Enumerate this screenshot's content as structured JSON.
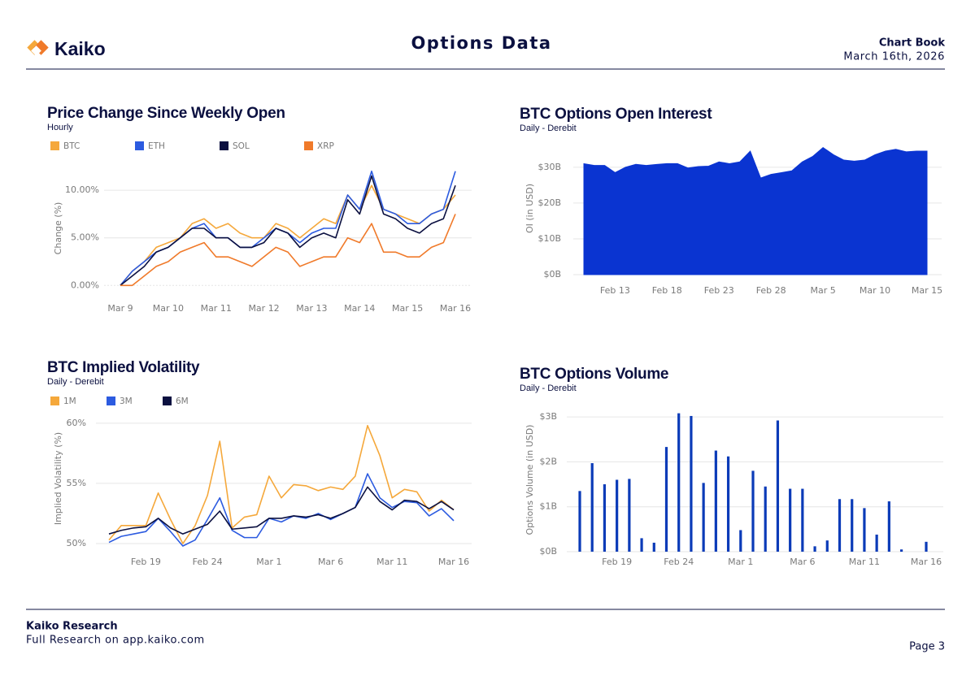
{
  "header": {
    "logo_text": "Kaiko",
    "title": "Options Data",
    "book": "Chart Book",
    "date": "March 16th, 2026"
  },
  "footer": {
    "brand": "Kaiko Research",
    "link": "Full Research on app.kaiko.com",
    "page": "Page 3"
  },
  "chart_data": [
    {
      "type": "line",
      "title": "Price Change Since Weekly Open",
      "subtitle": "Hourly",
      "y_label": "Change (%)",
      "categories": [
        "Mar 9",
        null,
        null,
        null,
        "Mar 10",
        null,
        null,
        null,
        "Mar 11",
        null,
        null,
        null,
        "Mar 12",
        null,
        null,
        null,
        "Mar 13",
        null,
        null,
        null,
        "Mar 14",
        null,
        null,
        null,
        "Mar 15",
        null,
        null,
        null,
        "Mar 16"
      ],
      "series": [
        {
          "name": "BTC",
          "color": "#f5a83b",
          "values": [
            0,
            1.5,
            2.5,
            4,
            4.5,
            5,
            6.5,
            7,
            6,
            6.5,
            5.5,
            5,
            5,
            6.5,
            6,
            5,
            6,
            7,
            6.5,
            9.5,
            8,
            10.5,
            8,
            7.5,
            7,
            6.5,
            7.5,
            8,
            9.5
          ]
        },
        {
          "name": "ETH",
          "color": "#2c5be0",
          "values": [
            0,
            1.5,
            2.5,
            3.5,
            4,
            5,
            6,
            6.5,
            5,
            5,
            4,
            4,
            5,
            6,
            5.5,
            4.5,
            5.5,
            6,
            6,
            9.5,
            8,
            12,
            8,
            7.5,
            6.5,
            6.5,
            7.5,
            8,
            12
          ]
        },
        {
          "name": "SOL",
          "color": "#0b1040",
          "values": [
            0,
            1,
            2,
            3.5,
            4,
            5,
            6,
            6,
            5,
            5,
            4,
            4,
            4.5,
            6,
            5.5,
            4,
            5,
            5.5,
            5,
            9,
            7.5,
            11.5,
            7.5,
            7,
            6,
            5.5,
            6.5,
            7,
            10.5
          ]
        },
        {
          "name": "XRP",
          "color": "#f07a2a",
          "values": [
            0,
            0,
            1,
            2,
            2.5,
            3.5,
            4,
            4.5,
            3,
            3,
            2.5,
            2,
            3,
            4,
            3.5,
            2,
            2.5,
            3,
            3,
            5,
            4.5,
            6.5,
            3.5,
            3.5,
            3,
            3,
            4,
            4.5,
            7.5
          ]
        }
      ],
      "ylim": [
        -1,
        13
      ],
      "yticks": [
        {
          "value": 0,
          "label": "0.00%"
        },
        {
          "value": 5,
          "label": "5.00%"
        },
        {
          "value": 10,
          "label": "10.00%"
        }
      ],
      "grid": true
    },
    {
      "type": "area",
      "title": "BTC Options Open Interest",
      "subtitle": "Daily - Derebit",
      "y_label": "OI (in USD)",
      "color": "#0a34d1",
      "categories": [
        null,
        null,
        null,
        "Feb 13",
        null,
        null,
        null,
        null,
        "Feb 18",
        null,
        null,
        null,
        null,
        "Feb 23",
        null,
        null,
        null,
        null,
        "Feb 28",
        null,
        null,
        null,
        null,
        "Mar 5",
        null,
        null,
        null,
        null,
        "Mar 10",
        null,
        null,
        null,
        null,
        "Mar 15"
      ],
      "values": [
        31,
        30.5,
        30.5,
        28.5,
        30,
        30.8,
        30.5,
        30.8,
        31,
        31,
        29.8,
        30.2,
        30.3,
        31.5,
        31,
        31.5,
        34.5,
        27,
        28,
        28.5,
        29,
        31.5,
        33,
        35.5,
        33.5,
        32,
        31.7,
        32,
        33.5,
        34.5,
        35,
        34.3,
        34.5,
        34.5
      ],
      "ylim": [
        0,
        37
      ],
      "yticks": [
        {
          "value": 0,
          "label": "$0B"
        },
        {
          "value": 10,
          "label": "$10B"
        },
        {
          "value": 20,
          "label": "$20B"
        },
        {
          "value": 30,
          "label": "$30B"
        }
      ],
      "grid": true
    },
    {
      "type": "line",
      "title": "BTC Implied Volatility",
      "subtitle": "Daily - Derebit",
      "y_label": "Implied Volatility (%)",
      "categories": [
        null,
        null,
        null,
        "Feb 19",
        null,
        null,
        null,
        null,
        "Feb 24",
        null,
        null,
        null,
        null,
        "Mar 1",
        null,
        null,
        null,
        null,
        "Mar 6",
        null,
        null,
        null,
        null,
        "Mar 11",
        null,
        null,
        null,
        null,
        "Mar 16"
      ],
      "series": [
        {
          "name": "1M",
          "color": "#f5a83b",
          "values": [
            50.3,
            51.5,
            51.5,
            51.5,
            54.2,
            52,
            50,
            51.5,
            54,
            58.5,
            51.3,
            52.2,
            52.4,
            55.6,
            53.8,
            54.9,
            54.8,
            54.4,
            54.7,
            54.5,
            55.6,
            59.8,
            57.3,
            53.8,
            54.5,
            54.3,
            52.7,
            53.6,
            52.8
          ]
        },
        {
          "name": "3M",
          "color": "#2c5be0",
          "values": [
            50.1,
            50.6,
            50.8,
            51,
            52.1,
            51,
            49.8,
            50.3,
            52,
            53.8,
            51.1,
            50.5,
            50.5,
            52.1,
            51.8,
            52.3,
            52.1,
            52.5,
            52,
            52.5,
            53,
            55.8,
            53.8,
            53,
            53.5,
            53.4,
            52.3,
            52.9,
            51.9
          ]
        },
        {
          "name": "6M",
          "color": "#0b1040",
          "values": [
            50.8,
            51.1,
            51.3,
            51.4,
            52.1,
            51.3,
            50.8,
            51.2,
            51.6,
            52.7,
            51.2,
            51.3,
            51.4,
            52.1,
            52.1,
            52.3,
            52.2,
            52.4,
            52.1,
            52.5,
            53,
            54.7,
            53.5,
            52.8,
            53.6,
            53.5,
            52.9,
            53.5,
            52.8
          ]
        }
      ],
      "ylim": [
        49.8,
        61
      ],
      "yticks": [
        {
          "value": 50,
          "label": "50%"
        },
        {
          "value": 55,
          "label": "55%"
        },
        {
          "value": 60,
          "label": "60%"
        }
      ],
      "grid": true
    },
    {
      "type": "bar",
      "title": "BTC Options Volume",
      "subtitle": "Daily - Derebit",
      "y_label": "Options Volume (in USD)",
      "color": "#0b3bb8",
      "categories": [
        null,
        null,
        null,
        "Feb 19",
        null,
        null,
        null,
        null,
        "Feb 24",
        null,
        null,
        null,
        null,
        "Mar 1",
        null,
        null,
        null,
        null,
        "Mar 6",
        null,
        null,
        null,
        null,
        "Mar 11",
        null,
        null,
        null,
        null,
        "Mar 16"
      ],
      "values": [
        1.35,
        1.97,
        1.5,
        1.6,
        1.62,
        0.3,
        0.2,
        2.33,
        3.08,
        3.02,
        1.53,
        2.25,
        2.12,
        0.48,
        1.8,
        1.45,
        2.92,
        1.4,
        1.4,
        0.12,
        0.25,
        1.17,
        1.17,
        0.97,
        0.38,
        1.12,
        0.05,
        0,
        0.22
      ],
      "ylim": [
        0,
        3.2
      ],
      "yticks": [
        {
          "value": 0,
          "label": "$0B"
        },
        {
          "value": 1,
          "label": "$1B"
        },
        {
          "value": 2,
          "label": "$2B"
        },
        {
          "value": 3,
          "label": "$3B"
        }
      ],
      "grid": true
    }
  ]
}
